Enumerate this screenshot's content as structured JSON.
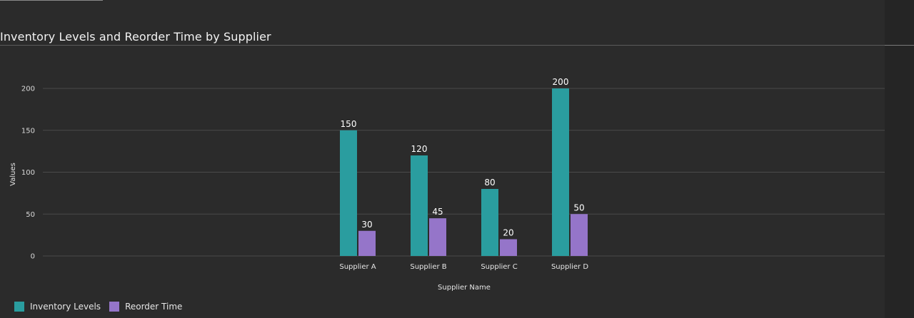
{
  "title": "Inventory Levels and Reorder Time by Supplier",
  "chart_data": {
    "type": "bar",
    "categories": [
      "Supplier A",
      "Supplier B",
      "Supplier C",
      "Supplier D"
    ],
    "series": [
      {
        "name": "Inventory Levels",
        "values": [
          150,
          120,
          80,
          200
        ],
        "color": "#2a9d9f"
      },
      {
        "name": "Reorder Time",
        "values": [
          30,
          45,
          20,
          50
        ],
        "color": "#9575c9"
      }
    ],
    "xlabel": "Supplier Name",
    "ylabel": "Values",
    "ylim": [
      0,
      200
    ],
    "yticks": [
      0,
      50,
      100,
      150,
      200
    ],
    "grid": true,
    "legend_position": "bottom-left"
  }
}
